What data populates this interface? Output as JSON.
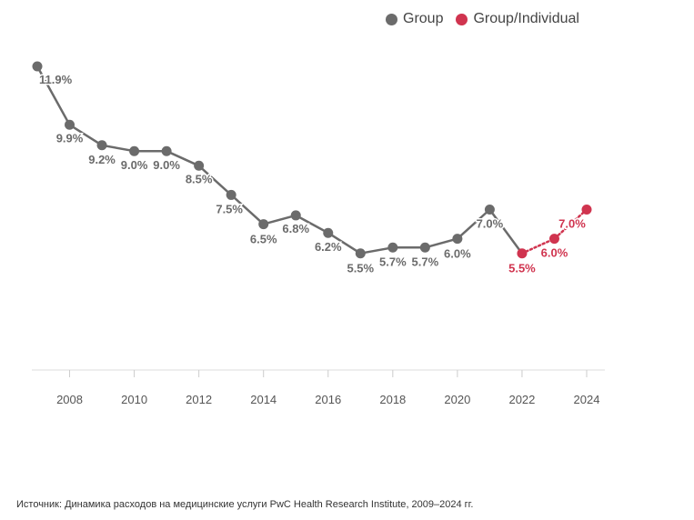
{
  "chart_data": {
    "type": "line",
    "legend": [
      {
        "name": "Group",
        "color": "#6b6b6b"
      },
      {
        "name": "Group/Individual",
        "color": "#d0344f"
      }
    ],
    "series": [
      {
        "name": "Group",
        "color": "#6b6b6b",
        "x": [
          2007,
          2008,
          2009,
          2010,
          2011,
          2012,
          2013,
          2014,
          2015,
          2016,
          2017,
          2018,
          2019,
          2020,
          2021,
          2022
        ],
        "values": [
          11.9,
          9.9,
          9.2,
          9.0,
          9.0,
          8.5,
          7.5,
          6.5,
          6.8,
          6.2,
          5.5,
          5.7,
          5.7,
          6.0,
          7.0,
          5.5
        ],
        "labels": [
          "11.9%",
          "9.9%",
          "9.2%",
          "9.0%",
          "9.0%",
          "8.5%",
          "7.5%",
          "6.5%",
          "6.8%",
          "6.2%",
          "5.5%",
          "5.7%",
          "5.7%",
          "6.0%",
          "7.0%",
          null
        ]
      },
      {
        "name": "Group/Individual",
        "color": "#d0344f",
        "x": [
          2022,
          2023,
          2024
        ],
        "values": [
          5.5,
          6.0,
          7.0
        ],
        "labels": [
          "5.5%",
          "6.0%",
          "7.0%"
        ]
      }
    ],
    "xticks": [
      2008,
      2010,
      2012,
      2014,
      2016,
      2018,
      2020,
      2022,
      2024
    ],
    "xtick_labels": [
      "2008",
      "2010",
      "2012",
      "2014",
      "2016",
      "2018",
      "2020",
      "2022",
      "2024"
    ],
    "xlim": [
      2007,
      2024
    ],
    "ylim": [
      3.5,
      11.9
    ],
    "grid": false
  },
  "source": {
    "prefix": "Источник: Динамика расходов на медицинские услуги ",
    "link": "PwC Health Research Institute",
    "suffix": ", 2009–2024 гг."
  }
}
